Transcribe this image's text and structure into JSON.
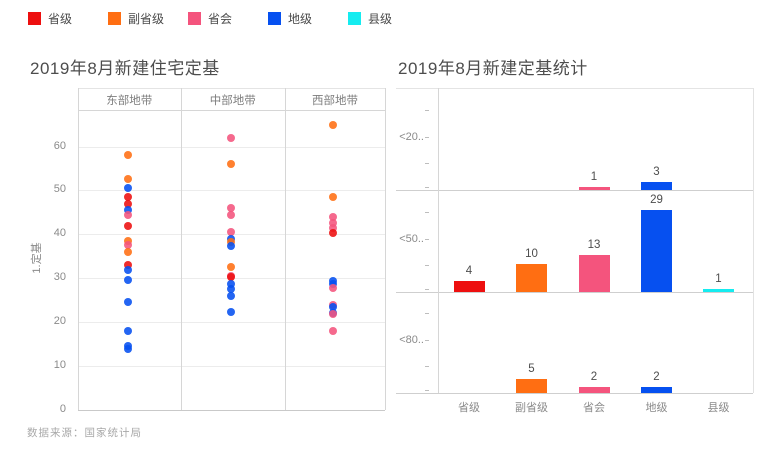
{
  "legend": {
    "items": [
      {
        "label": "省级",
        "series": "省级",
        "color": "#ed0f0f"
      },
      {
        "label": "副省级",
        "series": "副省级",
        "color": "#ff6e12"
      },
      {
        "label": "省会",
        "series": "省会",
        "color": "#f4547d"
      },
      {
        "label": "地级",
        "series": "地级",
        "color": "#0650f0"
      },
      {
        "label": "县级",
        "series": "县级",
        "color": "#15ecf0"
      }
    ]
  },
  "palette": {
    "省级": "#ed0f0f",
    "副省级": "#ff6e12",
    "省会": "#f4547d",
    "地级": "#0650f0",
    "县级": "#15ecf0"
  },
  "footer": {
    "source_text": "数据来源：国家统计局"
  },
  "chart_data": [
    {
      "type": "scatter",
      "title": "2019年8月新建住宅定基",
      "ylabel": "1.定基",
      "ylim": [
        0,
        68
      ],
      "yticks": [
        "0",
        "10",
        "20",
        "30",
        "40",
        "50",
        "60"
      ],
      "grid": true,
      "legend_position": "top-left",
      "facets": [
        {
          "label": "东部地带",
          "points": [
            {
              "series": "副省级",
              "value": 58
            },
            {
              "series": "副省级",
              "value": 52.5
            },
            {
              "series": "地级",
              "value": 50.5
            },
            {
              "series": "省级",
              "value": 48.5
            },
            {
              "series": "省级",
              "value": 47
            },
            {
              "series": "地级",
              "value": 45.5
            },
            {
              "series": "省会",
              "value": 44.5
            },
            {
              "series": "省级",
              "value": 42
            },
            {
              "series": "副省级",
              "value": 38.5
            },
            {
              "series": "省会",
              "value": 37.5
            },
            {
              "series": "副省级",
              "value": 36
            },
            {
              "series": "省级",
              "value": 33
            },
            {
              "series": "地级",
              "value": 32
            },
            {
              "series": "地级",
              "value": 29.5
            },
            {
              "series": "地级",
              "value": 24.5
            },
            {
              "series": "地级",
              "value": 18
            },
            {
              "series": "地级",
              "value": 14.5
            },
            {
              "series": "地级",
              "value": 13.8
            }
          ]
        },
        {
          "label": "中部地带",
          "points": [
            {
              "series": "省会",
              "value": 62
            },
            {
              "series": "副省级",
              "value": 56
            },
            {
              "series": "省会",
              "value": 46
            },
            {
              "series": "省会",
              "value": 44.5
            },
            {
              "series": "省会",
              "value": 40.5
            },
            {
              "series": "地级",
              "value": 39
            },
            {
              "series": "副省级",
              "value": 38.3
            },
            {
              "series": "地级",
              "value": 37.3
            },
            {
              "series": "副省级",
              "value": 32.5
            },
            {
              "series": "省会",
              "value": 30.6
            },
            {
              "series": "省级",
              "value": 30.2
            },
            {
              "series": "地级",
              "value": 28.8
            },
            {
              "series": "地级",
              "value": 27.6
            },
            {
              "series": "地级",
              "value": 26
            },
            {
              "series": "地级",
              "value": 22.4
            }
          ]
        },
        {
          "label": "西部地带",
          "points": [
            {
              "series": "副省级",
              "value": 65
            },
            {
              "series": "副省级",
              "value": 48.5
            },
            {
              "series": "省会",
              "value": 44
            },
            {
              "series": "省会",
              "value": 42.6
            },
            {
              "series": "省会",
              "value": 41.5
            },
            {
              "series": "省级",
              "value": 40.4
            },
            {
              "series": "地级",
              "value": 29.3
            },
            {
              "series": "地级",
              "value": 28.6
            },
            {
              "series": "省会",
              "value": 27.8
            },
            {
              "series": "省会",
              "value": 24
            },
            {
              "series": "地级",
              "value": 23.5
            },
            {
              "series": "地级",
              "value": 22.2
            },
            {
              "series": "省会",
              "value": 21.8
            },
            {
              "series": "省会",
              "value": 18
            }
          ]
        }
      ]
    },
    {
      "type": "bar",
      "title": "2019年8月新建定基统计",
      "categories": [
        "省级",
        "副省级",
        "省会",
        "地级",
        "县级"
      ],
      "rows": [
        {
          "label": "<20..",
          "values": [
            null,
            null,
            1,
            3,
            null
          ]
        },
        {
          "label": "<50..",
          "values": [
            4,
            10,
            13,
            29,
            1
          ]
        },
        {
          "label": "<80..",
          "values": [
            null,
            5,
            2,
            2,
            null
          ]
        }
      ],
      "row_value_max": 36,
      "grid": false,
      "data_labels": true
    }
  ]
}
